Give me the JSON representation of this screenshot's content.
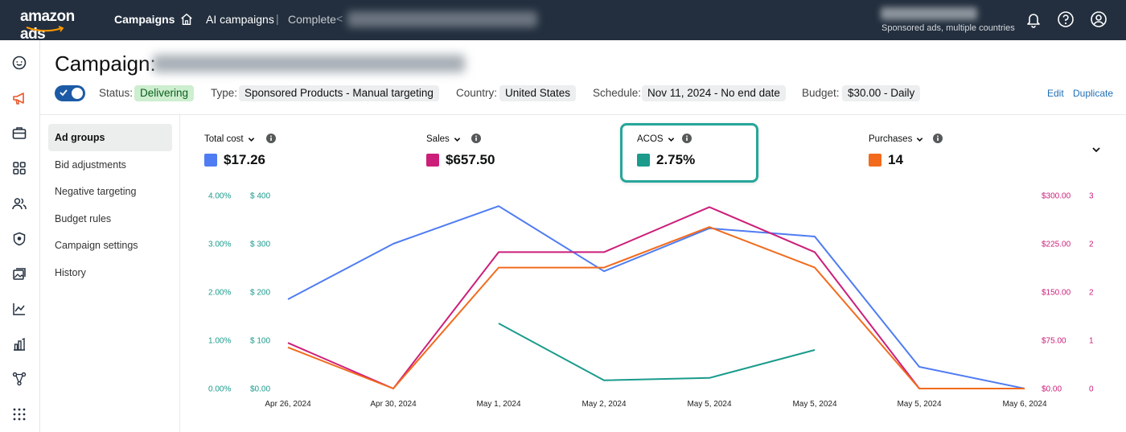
{
  "topbar": {
    "logo": "amazon ads",
    "nav_campaigns": "Campaigns",
    "breadcrumb_ai": "AI campaigns",
    "breadcrumb_sep": "|",
    "breadcrumb_complete": "Complete",
    "breadcrumb_sep2": "<",
    "account_sub": "Sponsored ads, multiple countries"
  },
  "header": {
    "title_label": "Campaign:",
    "status_label": "Status:",
    "status_value": "Delivering",
    "type_label": "Type:",
    "type_value": "Sponsored Products - Manual targeting",
    "country_label": "Country:",
    "country_value": "United States",
    "schedule_label": "Schedule:",
    "schedule_value": "Nov 11, 2024 - No end date",
    "budget_label": "Budget:",
    "budget_value": "$30.00 - Daily",
    "edit": "Edit",
    "duplicate": "Duplicate"
  },
  "subnav": {
    "items": [
      {
        "label": "Ad groups"
      },
      {
        "label": "Bid adjustments"
      },
      {
        "label": "Negative targeting"
      },
      {
        "label": "Budget rules"
      },
      {
        "label": "Campaign settings"
      },
      {
        "label": "History"
      }
    ]
  },
  "metrics": [
    {
      "label": "Total cost",
      "value": "$17.26",
      "color": "#4f7cf3"
    },
    {
      "label": "Sales",
      "value": "$657.50",
      "color": "#cc1f7a"
    },
    {
      "label": "ACOS",
      "value": "2.75%",
      "color": "#1a9b8c"
    },
    {
      "label": "Purchases",
      "value": "14",
      "color": "#f26b1d"
    }
  ],
  "chart_data": {
    "type": "line",
    "categories": [
      "Apr 26, 2024",
      "Apr 30, 2024",
      "May 1, 2024",
      "May 2, 2024",
      "May 5, 2024",
      "May 5, 2024",
      "May 5, 2024",
      "May 6, 2024"
    ],
    "axes": {
      "acos_ticks": [
        "0.00%",
        "1.00%",
        "2.00%",
        "3.00%",
        "4.00%"
      ],
      "cost_ticks": [
        "$0.00",
        "$ 100",
        "$ 200",
        "$ 300",
        "$ 400"
      ],
      "sales_ticks": [
        "$0.00",
        "$75.00",
        "$150.00",
        "$225.00",
        "$300.00"
      ],
      "purchases_ticks": [
        "0",
        "1",
        "2",
        "2",
        "3"
      ],
      "acos_color": "#1a9b8c",
      "sales_color": "#cc1f7a",
      "cost_ylim": [
        0,
        400
      ],
      "sales_ylim": [
        0,
        300
      ],
      "acos_ylim": [
        0,
        4
      ]
    },
    "series": [
      {
        "name": "Total cost",
        "axis": "cost",
        "color": "#4f7cf3",
        "values": [
          185,
          300,
          378,
          243,
          332,
          315,
          45,
          0
        ]
      },
      {
        "name": "Sales",
        "axis": "sales",
        "color": "#cc1f7a",
        "values": [
          71,
          0,
          212,
          212,
          282,
          212,
          0,
          0
        ]
      },
      {
        "name": "Purchases",
        "axis": "sales",
        "color": "#f26b1d",
        "values": [
          64,
          0,
          188,
          188,
          251,
          188,
          0,
          0
        ]
      },
      {
        "name": "ACOS",
        "axis": "acos",
        "color": "#1a9b8c",
        "values": [
          null,
          null,
          1.35,
          0.17,
          0.22,
          0.8,
          null,
          null
        ]
      }
    ]
  }
}
